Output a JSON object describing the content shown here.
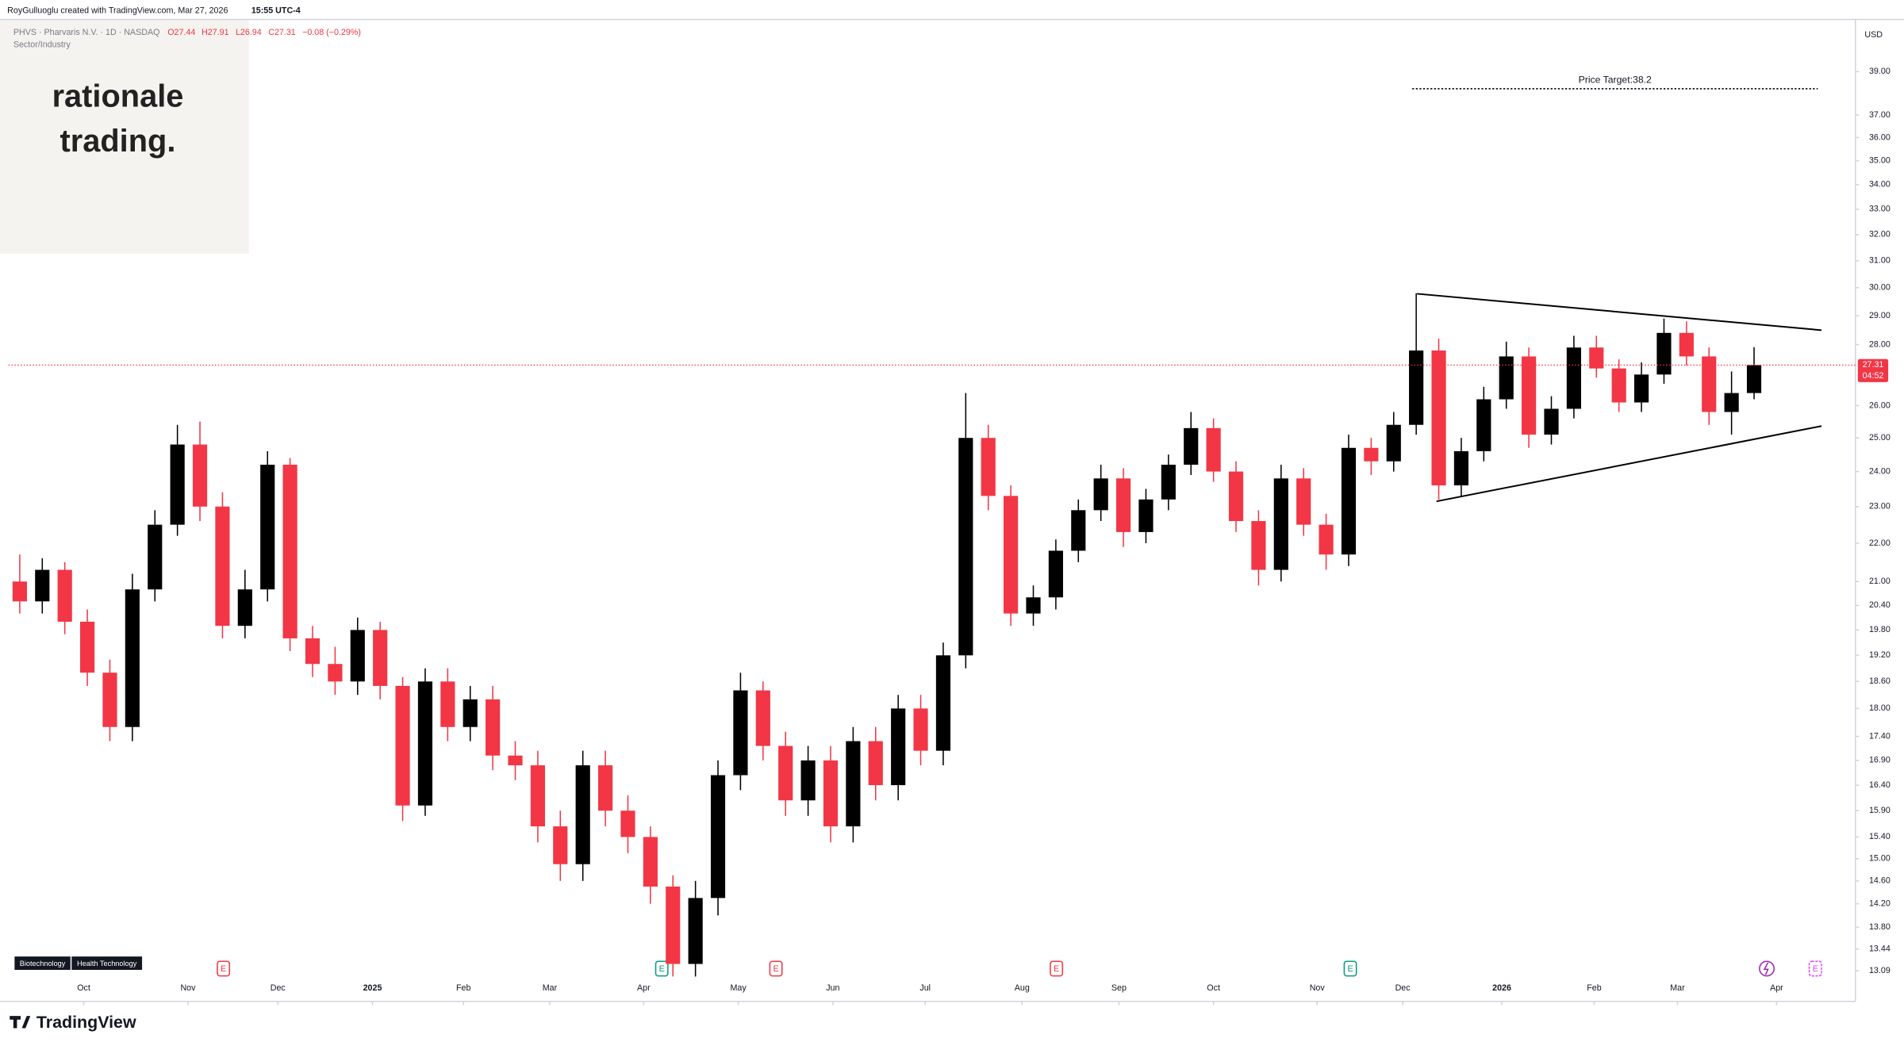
{
  "header": {
    "credit": "RoyGulluoglu created with TradingView.com, Mar 27, 2026",
    "time": "15:55 UTC-4",
    "symbol": "PHVS · Pharvaris N.V. · 1D · NASDAQ",
    "ohlc": [
      "O27.44",
      "H27.91",
      "L26.94",
      "C27.31",
      "−0.08 (−0.29%)"
    ],
    "sector": "Sector/Industry",
    "logo": [
      "rationale",
      "trading."
    ],
    "tags": [
      "Biotechnology",
      "Health Technology"
    ],
    "event_icon": "E",
    "brand": "TradingView"
  },
  "chart_data": {
    "type": "candlestick",
    "currency": "USD",
    "log_scale": true,
    "up_color": "#000000",
    "down_color": "#f23645",
    "ylim": [
      12.99,
      41.43
    ],
    "yticks": [
      {
        "value": 13.09,
        "label": "13.09"
      },
      {
        "value": 13.44,
        "label": "13.44"
      },
      {
        "value": 13.8,
        "label": "13.80"
      },
      {
        "value": 14.2,
        "label": "14.20"
      },
      {
        "value": 14.6,
        "label": "14.60"
      },
      {
        "value": 15,
        "label": "15.00"
      },
      {
        "value": 15.4,
        "label": "15.40"
      },
      {
        "value": 15.9,
        "label": "15.90"
      },
      {
        "value": 16.4,
        "label": "16.40"
      },
      {
        "value": 16.9,
        "label": "16.90"
      },
      {
        "value": 17.4,
        "label": "17.40"
      },
      {
        "value": 18,
        "label": "18.00"
      },
      {
        "value": 18.6,
        "label": "18.60"
      },
      {
        "value": 19.2,
        "label": "19.20"
      },
      {
        "value": 19.8,
        "label": "19.80"
      },
      {
        "value": 20.4,
        "label": "20.40"
      },
      {
        "value": 21,
        "label": "21.00"
      },
      {
        "value": 22,
        "label": "22.00"
      },
      {
        "value": 23,
        "label": "23.00"
      },
      {
        "value": 24,
        "label": "24.00"
      },
      {
        "value": 25,
        "label": "25.00"
      },
      {
        "value": 26,
        "label": "26.00"
      },
      {
        "value": 28,
        "label": "28.00"
      },
      {
        "value": 29,
        "label": "29.00"
      },
      {
        "value": 30,
        "label": "30.00"
      },
      {
        "value": 31,
        "label": "31.00"
      },
      {
        "value": 32,
        "label": "32.00"
      },
      {
        "value": 33,
        "label": "33.00"
      },
      {
        "value": 34,
        "label": "34.00"
      },
      {
        "value": 35,
        "label": "35.00"
      },
      {
        "value": 36,
        "label": "36.00"
      },
      {
        "value": 37,
        "label": "37.00"
      },
      {
        "value": 39,
        "label": "39.00"
      }
    ],
    "xlim": [
      -0.5,
      81.5
    ],
    "xticks": [
      {
        "value": 2.84,
        "label": "Oct"
      },
      {
        "value": 7.47,
        "label": "Nov"
      },
      {
        "value": 11.46,
        "label": "Dec"
      },
      {
        "value": 15.66,
        "label": "2025"
      },
      {
        "value": 19.7,
        "label": "Feb"
      },
      {
        "value": 23.53,
        "label": "Mar"
      },
      {
        "value": 27.7,
        "label": "Apr"
      },
      {
        "value": 31.9,
        "label": "May"
      },
      {
        "value": 36.1,
        "label": "Jun"
      },
      {
        "value": 40.2,
        "label": "Jul"
      },
      {
        "value": 44.5,
        "label": "Aug"
      },
      {
        "value": 48.8,
        "label": "Sep"
      },
      {
        "value": 53.0,
        "label": "Oct"
      },
      {
        "value": 57.6,
        "label": "Nov"
      },
      {
        "value": 61.4,
        "label": "Dec"
      },
      {
        "value": 65.8,
        "label": "2026"
      },
      {
        "value": 69.9,
        "label": "Feb"
      },
      {
        "value": 73.6,
        "label": "Mar"
      },
      {
        "value": 78.0,
        "label": "Apr"
      }
    ],
    "series": [
      {
        "open": [
          21.0,
          20.5,
          21.3,
          20.0,
          18.8,
          17.6,
          20.8,
          22.5,
          24.8,
          23.0,
          19.9,
          20.8,
          24.2,
          19.6,
          19.0,
          18.6,
          19.8,
          18.5,
          16.0,
          18.6,
          17.6,
          18.2,
          17.0,
          16.8,
          15.6,
          14.9,
          16.8,
          15.9,
          15.4,
          14.5,
          13.2,
          14.3,
          16.6,
          18.4,
          17.2,
          16.1,
          16.9,
          15.6,
          17.3,
          16.4,
          18.0,
          17.1,
          19.2,
          25.0,
          23.3,
          20.2,
          20.6,
          21.8,
          22.9,
          23.8,
          22.3,
          23.2,
          24.2,
          25.3,
          24.0,
          22.6,
          21.3,
          23.8,
          22.5,
          21.7,
          24.7,
          24.3,
          25.4,
          27.8,
          23.6,
          24.6,
          26.2,
          27.6,
          25.1,
          25.9,
          27.9,
          27.2,
          26.1,
          27.0,
          28.4,
          27.6,
          25.8,
          26.4
        ],
        "high": [
          21.7,
          21.6,
          21.5,
          20.3,
          19.1,
          21.2,
          22.9,
          25.4,
          25.5,
          23.4,
          21.3,
          24.6,
          24.4,
          19.9,
          19.4,
          20.1,
          20.0,
          18.7,
          18.9,
          18.9,
          18.5,
          18.5,
          17.3,
          17.1,
          15.9,
          17.1,
          17.1,
          16.2,
          15.6,
          14.7,
          14.6,
          16.9,
          18.8,
          18.6,
          17.5,
          17.2,
          17.2,
          17.6,
          17.6,
          18.3,
          18.3,
          19.5,
          26.4,
          25.4,
          23.6,
          20.9,
          22.1,
          23.2,
          24.2,
          24.1,
          23.5,
          24.5,
          25.8,
          25.6,
          24.3,
          22.9,
          24.2,
          24.1,
          22.8,
          25.1,
          25.0,
          25.8,
          29.8,
          28.2,
          25.0,
          26.6,
          28.1,
          27.9,
          26.3,
          28.3,
          28.3,
          27.5,
          27.4,
          28.9,
          28.8,
          27.9,
          27.1,
          27.91
        ],
        "low": [
          20.2,
          20.2,
          19.7,
          18.5,
          17.3,
          17.3,
          20.5,
          22.2,
          22.6,
          19.6,
          19.6,
          20.5,
          19.3,
          18.7,
          18.3,
          18.3,
          18.2,
          15.7,
          15.8,
          17.3,
          17.3,
          16.7,
          16.5,
          15.3,
          14.6,
          14.6,
          15.6,
          15.1,
          14.2,
          13.0,
          13.0,
          14.0,
          16.3,
          16.9,
          15.8,
          15.8,
          15.3,
          15.3,
          16.1,
          16.1,
          16.8,
          16.8,
          18.9,
          22.9,
          19.9,
          19.9,
          20.3,
          21.5,
          22.6,
          21.9,
          22.0,
          22.9,
          23.9,
          23.7,
          22.3,
          20.9,
          21.0,
          22.2,
          21.3,
          21.4,
          23.9,
          24.0,
          25.1,
          23.2,
          23.3,
          24.3,
          25.9,
          24.7,
          24.8,
          25.6,
          26.9,
          25.8,
          25.8,
          26.7,
          27.3,
          25.4,
          25.1,
          26.2
        ],
        "close": [
          20.5,
          21.3,
          20.0,
          18.8,
          17.6,
          20.8,
          22.5,
          24.8,
          23.0,
          19.9,
          20.8,
          24.2,
          19.6,
          19.0,
          18.6,
          19.8,
          18.5,
          16.0,
          18.6,
          17.6,
          18.2,
          17.0,
          16.8,
          15.6,
          14.9,
          16.8,
          15.9,
          15.4,
          14.5,
          13.2,
          14.3,
          16.6,
          18.4,
          17.2,
          16.1,
          16.9,
          15.6,
          17.3,
          16.4,
          18.0,
          17.1,
          19.2,
          25.0,
          23.3,
          20.2,
          20.6,
          21.8,
          22.9,
          23.8,
          22.3,
          23.2,
          24.2,
          25.3,
          24.0,
          22.6,
          21.3,
          23.8,
          22.5,
          21.7,
          24.7,
          24.3,
          25.4,
          27.8,
          23.6,
          24.6,
          26.2,
          27.6,
          25.1,
          25.9,
          27.9,
          27.2,
          26.1,
          27.0,
          28.4,
          27.6,
          25.8,
          26.4,
          27.31
        ]
      }
    ],
    "price_target": {
      "value": 38.2,
      "label": "Price Target:38.2"
    },
    "last_price": {
      "value": 27.31,
      "label": "27.31"
    },
    "countdown": "04:52"
  }
}
